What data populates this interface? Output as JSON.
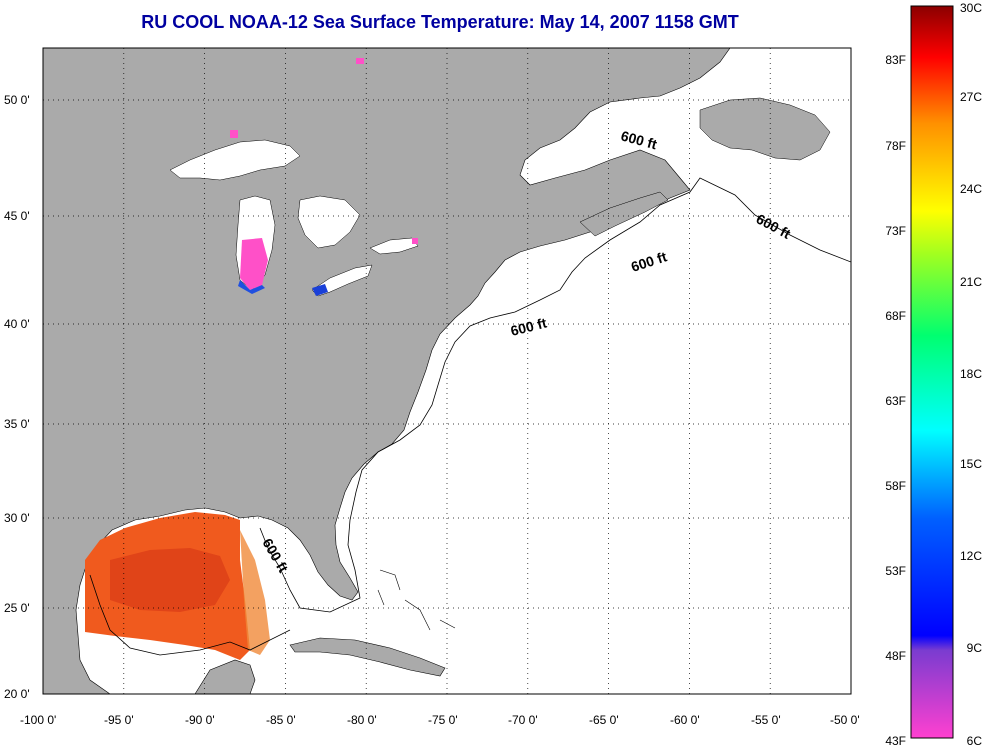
{
  "title": "RU COOL  NOAA-12  Sea Surface Temperature:  May 14, 2007 1158 GMT",
  "map": {
    "lon_ticks": [
      "-100 0'",
      "-95 0'",
      "-90 0'",
      "-85 0'",
      "-80 0'",
      "-75 0'",
      "-70 0'",
      "-65 0'",
      "-60 0'",
      "-55 0'",
      "-50 0'"
    ],
    "lat_ticks": [
      "50 0'",
      "45 0'",
      "40 0'",
      "35 0'",
      "30 0'",
      "25 0'",
      "20 0'"
    ],
    "contour_labels": [
      "600 ft",
      "600 ft",
      "600 ft",
      "600 ft",
      "600 ft"
    ],
    "colors": {
      "land": "#aaaaaa",
      "ocean_nodata": "#ffffff",
      "gulf_sst": "#f05a1e",
      "lake_pink": "#ff50c8"
    }
  },
  "colorbar": {
    "fahrenheit": [
      "83F",
      "78F",
      "73F",
      "68F",
      "63F",
      "58F",
      "53F",
      "48F",
      "43F"
    ],
    "celsius": [
      "30C",
      "27C",
      "24C",
      "21C",
      "18C",
      "15C",
      "12C",
      "9C",
      "6C"
    ]
  }
}
